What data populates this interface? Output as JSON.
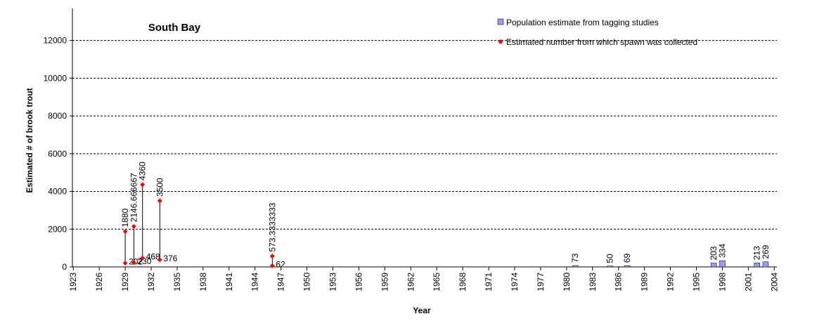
{
  "chart_data": {
    "type": "scatter",
    "title": "South Bay",
    "x_label": "Year",
    "y_label": "Estimated # of brook trout",
    "xlim": [
      1922.9,
      2004.3
    ],
    "ylim": [
      0,
      13700
    ],
    "xticks": [
      1923,
      1926,
      1929,
      1932,
      1935,
      1938,
      1941,
      1944,
      1947,
      1950,
      1953,
      1956,
      1959,
      1962,
      1965,
      1968,
      1971,
      1974,
      1977,
      1980,
      1983,
      1986,
      1989,
      1992,
      1995,
      1998,
      2001,
      2004
    ],
    "yticks": [
      0,
      2000,
      4000,
      6000,
      8000,
      10000,
      12000
    ],
    "grid": true,
    "legend": "top-right",
    "series": [
      {
        "name": "Population estimate from tagging studies",
        "color": "#9999ff",
        "marker": "bar",
        "x": [
          1981,
          1985,
          1987,
          1997,
          1998,
          2002,
          2003
        ],
        "values": [
          73,
          50,
          69,
          203,
          334,
          213,
          269
        ]
      },
      {
        "name": "Estimated number from which spawn was collected",
        "color": "#ff0000",
        "marker": "diamond",
        "x": [
          1929,
          1929,
          1930,
          1930,
          1931,
          1931,
          1933,
          1933,
          1946,
          1946
        ],
        "values": [
          202,
          1880,
          230,
          2146.666667,
          468,
          4360,
          376,
          3500,
          62,
          573.3333333
        ]
      }
    ]
  }
}
